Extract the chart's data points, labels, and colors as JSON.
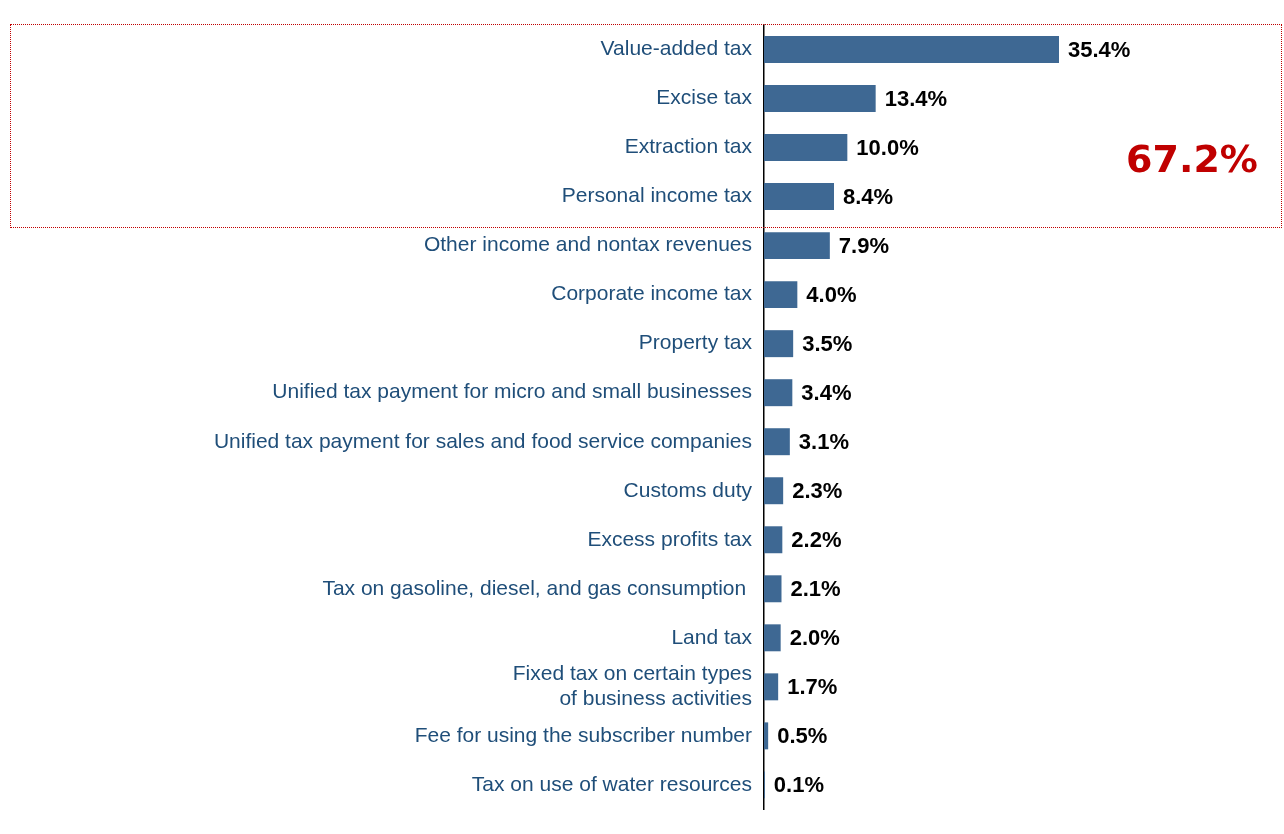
{
  "chart_data": {
    "type": "bar",
    "orientation": "horizontal",
    "categories": [
      "Value-added tax",
      "Excise tax",
      "Extraction tax",
      "Personal income tax",
      "Other income and nontax revenues",
      "Corporate income tax",
      "Property tax",
      "Unified tax payment for micro and small businesses",
      "Unified tax payment for sales and food service companies",
      "Customs duty",
      "Excess profits tax",
      "Tax on gasoline, diesel, and gas consumption ",
      "Land tax",
      "Fixed tax on certain types\nof business activities",
      "Fee for using the subscriber number",
      "Tax on use of water resources"
    ],
    "values": [
      35.4,
      13.4,
      10.0,
      8.4,
      7.9,
      4.0,
      3.5,
      3.4,
      3.1,
      2.3,
      2.2,
      2.1,
      2.0,
      1.7,
      0.5,
      0.1
    ],
    "value_labels": [
      "35.4%",
      "13.4%",
      "10.0%",
      "8.4%",
      "7.9%",
      "4.0%",
      "3.5%",
      "3.4%",
      "3.1%",
      "2.3%",
      "2.2%",
      "2.1%",
      "2.0%",
      "1.7%",
      "0.5%",
      "0.1%"
    ],
    "color": "#3e6893",
    "annotations": [
      "67.2%"
    ]
  }
}
